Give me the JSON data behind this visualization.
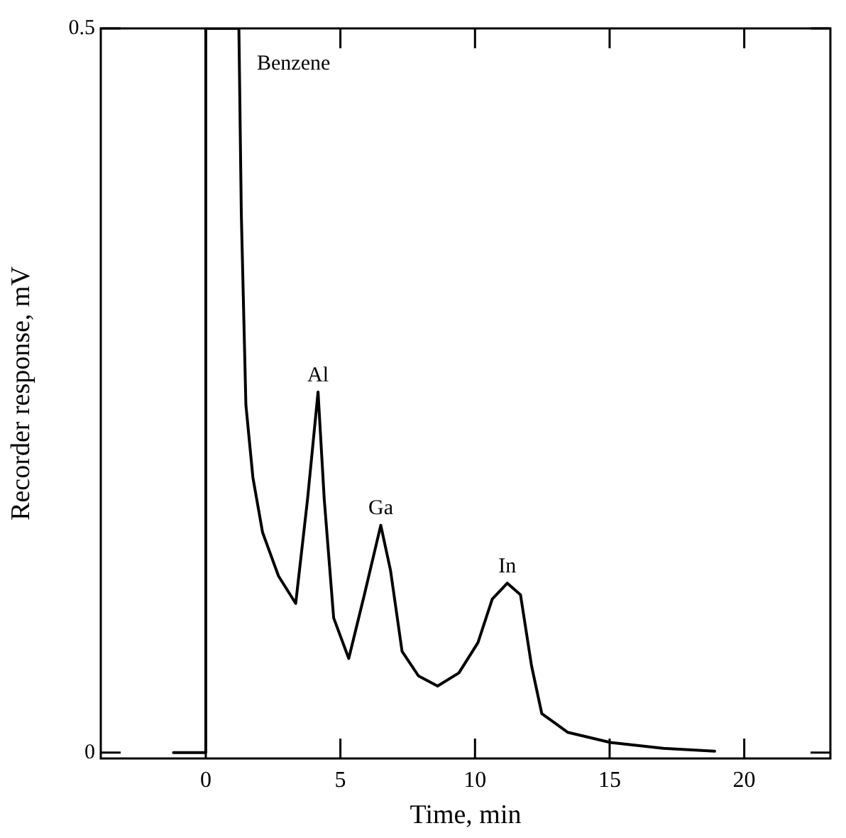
{
  "chart_data": {
    "type": "line",
    "xlabel": "Time, min",
    "ylabel": "Recorder response, mV",
    "xlim": [
      -3.9,
      23.2
    ],
    "xticks": [
      0,
      5,
      10,
      15,
      20
    ],
    "ylim": [
      -0.004,
      0.5
    ],
    "yticks": [
      0,
      0.5
    ],
    "series": [
      {
        "color": "#000000",
        "x": [
          -1.2,
          0,
          0,
          1.23,
          1.32,
          1.49,
          1.75,
          2.11,
          2.7,
          3.34,
          3.78,
          4.17,
          4.4,
          4.75,
          5.31,
          5.89,
          6.5,
          6.86,
          7.29,
          7.9,
          8.61,
          9.4,
          10.11,
          10.64,
          11.2,
          11.69,
          12.1,
          12.48,
          13.45,
          15.03,
          17,
          18.9
        ],
        "values": [
          0,
          0,
          0.5,
          0.5,
          0.372,
          0.24,
          0.19,
          0.152,
          0.122,
          0.103,
          0.175,
          0.249,
          0.175,
          0.093,
          0.065,
          0.109,
          0.157,
          0.126,
          0.07,
          0.053,
          0.046,
          0.055,
          0.076,
          0.106,
          0.117,
          0.109,
          0.06,
          0.027,
          0.014,
          0.007,
          0.003,
          0.001
        ]
      }
    ],
    "annotations": [
      "Benzene",
      {
        "text": "Al",
        "x": 4.17,
        "y": 0.249
      },
      {
        "text": "Ga",
        "x": 6.5,
        "y": 0.157
      },
      {
        "text": "In",
        "x": 11.2,
        "y": 0.117
      }
    ],
    "grid": false,
    "legend": false,
    "marker": "none",
    "line_style": "solid"
  }
}
